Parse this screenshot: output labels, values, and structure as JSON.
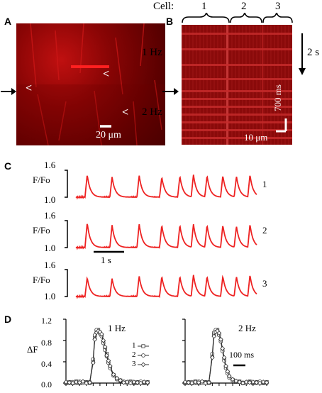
{
  "panels": {
    "a": {
      "label": "A",
      "scalebar_text": "20 μm",
      "marker": "<"
    },
    "b": {
      "label": "B",
      "cell_header": "Cell:",
      "cells": [
        "1",
        "2",
        "3"
      ],
      "rate_top": "1 Hz",
      "rate_bottom": "2 Hz",
      "time_scale": "2 s",
      "ms_scale": "700 ms",
      "um_scale": "10 μm"
    },
    "c": {
      "label": "C",
      "ylabel": "F/Fo",
      "ytick_top": "1.6",
      "ytick_bottom": "1.0",
      "trace_numbers": [
        "1",
        "2",
        "3"
      ],
      "time_scale": "1 s"
    },
    "d": {
      "label": "D",
      "ylabel": "ΔF",
      "yticks": [
        "0.0",
        "0.4",
        "0.8",
        "1.2"
      ],
      "left_title": "1 Hz",
      "right_title": "2 Hz",
      "legend": [
        "1",
        "2",
        "3"
      ],
      "time_scale": "100 ms"
    }
  },
  "colors": {
    "trace": "#ee2222",
    "image_bg": "#7a0000"
  },
  "chart_data": [
    {
      "type": "line",
      "title": "",
      "ylabel": "F/Fo",
      "ylim": [
        1.0,
        1.6
      ],
      "series": [
        {
          "name": "1",
          "peak_times_s": [
            0.25,
            0.8,
            1.4,
            1.9,
            2.3,
            2.6,
            2.9,
            3.25,
            3.55,
            3.85
          ],
          "peaks": [
            1.5,
            1.45,
            1.48,
            1.45,
            1.47,
            1.5,
            1.48,
            1.48,
            1.47,
            1.5
          ]
        },
        {
          "name": "2",
          "peak_times_s": [
            0.25,
            0.8,
            1.4,
            1.9,
            2.3,
            2.6,
            2.9,
            3.25,
            3.55,
            3.85
          ],
          "peaks": [
            1.55,
            1.5,
            1.52,
            1.5,
            1.5,
            1.52,
            1.5,
            1.5,
            1.48,
            1.52
          ]
        },
        {
          "name": "3",
          "peak_times_s": [
            0.25,
            0.8,
            1.4,
            1.9,
            2.3,
            2.6,
            2.9,
            3.25,
            3.55,
            3.85
          ],
          "peaks": [
            1.42,
            1.4,
            1.45,
            1.45,
            1.45,
            1.48,
            1.45,
            1.45,
            1.45,
            1.48
          ]
        }
      ]
    },
    {
      "type": "line",
      "title": "1 Hz",
      "ylabel": "ΔF",
      "ylim": [
        0.0,
        1.2
      ],
      "series": [
        {
          "name": "1",
          "x_ms": [
            0,
            20,
            40,
            60,
            80,
            100,
            120,
            140,
            160,
            170,
            180,
            190,
            200,
            210,
            220,
            230,
            240,
            250,
            260,
            280,
            300,
            320,
            340,
            360,
            380,
            400,
            420,
            440,
            460,
            480
          ],
          "values": [
            0.0,
            0.02,
            0.0,
            0.03,
            0.0,
            0.01,
            0.02,
            0.0,
            0.4,
            0.85,
            0.98,
            1.0,
            0.95,
            0.9,
            0.78,
            0.65,
            0.55,
            0.4,
            0.3,
            0.15,
            0.08,
            0.05,
            0.02,
            0.01,
            0.03,
            0.0,
            0.02,
            0.01,
            0.0,
            0.02
          ]
        },
        {
          "name": "2",
          "x_ms": [
            0,
            20,
            40,
            60,
            80,
            100,
            120,
            140,
            160,
            170,
            180,
            190,
            200,
            210,
            220,
            230,
            240,
            250,
            260,
            280,
            300,
            320,
            340,
            360,
            380,
            400,
            420,
            440,
            460,
            480
          ],
          "values": [
            0.01,
            0.0,
            0.02,
            0.0,
            0.03,
            0.0,
            0.01,
            0.02,
            0.45,
            0.9,
            1.0,
            0.97,
            0.93,
            0.88,
            0.75,
            0.62,
            0.5,
            0.38,
            0.28,
            0.14,
            0.07,
            0.04,
            0.03,
            0.0,
            0.02,
            0.01,
            0.0,
            0.03,
            0.01,
            0.0
          ]
        },
        {
          "name": "3",
          "x_ms": [
            0,
            20,
            40,
            60,
            80,
            100,
            120,
            140,
            160,
            170,
            180,
            190,
            200,
            210,
            220,
            230,
            240,
            250,
            260,
            280,
            300,
            320,
            340,
            360,
            380,
            400,
            420,
            440,
            460,
            480
          ],
          "values": [
            0.02,
            0.01,
            0.0,
            0.02,
            0.01,
            0.03,
            0.0,
            0.01,
            0.38,
            0.82,
            0.95,
            0.98,
            0.96,
            0.92,
            0.8,
            0.68,
            0.52,
            0.42,
            0.32,
            0.16,
            0.09,
            0.05,
            0.01,
            0.02,
            0.0,
            0.02,
            0.01,
            0.0,
            0.02,
            0.01
          ]
        }
      ]
    },
    {
      "type": "line",
      "title": "2 Hz",
      "ylabel": "ΔF",
      "ylim": [
        0.0,
        1.2
      ],
      "series": [
        {
          "name": "1",
          "x_ms": [
            0,
            20,
            40,
            60,
            80,
            100,
            120,
            140,
            160,
            170,
            180,
            190,
            200,
            210,
            220,
            230,
            240,
            250,
            260,
            280,
            300,
            320,
            340,
            360,
            380,
            400,
            420,
            440,
            460,
            480
          ],
          "values": [
            0.0,
            0.02,
            0.0,
            0.03,
            0.0,
            0.01,
            0.02,
            0.0,
            0.5,
            0.9,
            0.98,
            1.0,
            0.92,
            0.8,
            0.62,
            0.45,
            0.3,
            0.2,
            0.12,
            0.06,
            0.02,
            0.03,
            0.0,
            0.01,
            0.03,
            0.0,
            0.02,
            0.01,
            0.0,
            0.02
          ]
        },
        {
          "name": "2",
          "x_ms": [
            0,
            20,
            40,
            60,
            80,
            100,
            120,
            140,
            160,
            170,
            180,
            190,
            200,
            210,
            220,
            230,
            240,
            250,
            260,
            280,
            300,
            320,
            340,
            360,
            380,
            400,
            420,
            440,
            460,
            480
          ],
          "values": [
            0.01,
            0.0,
            0.02,
            0.0,
            0.03,
            0.0,
            0.01,
            0.02,
            0.55,
            0.95,
            1.0,
            0.97,
            0.9,
            0.78,
            0.6,
            0.42,
            0.28,
            0.18,
            0.1,
            0.05,
            0.03,
            0.02,
            0.01,
            0.0,
            0.02,
            0.01,
            0.0,
            0.03,
            0.01,
            0.0
          ]
        },
        {
          "name": "3",
          "x_ms": [
            0,
            20,
            40,
            60,
            80,
            100,
            120,
            140,
            160,
            170,
            180,
            190,
            200,
            210,
            220,
            230,
            240,
            250,
            260,
            280,
            300,
            320,
            340,
            360,
            380,
            400,
            420,
            440,
            460,
            480
          ],
          "values": [
            0.02,
            0.01,
            0.0,
            0.02,
            0.01,
            0.03,
            0.0,
            0.01,
            0.48,
            0.88,
            0.96,
            0.98,
            0.94,
            0.82,
            0.65,
            0.48,
            0.32,
            0.22,
            0.13,
            0.07,
            0.04,
            0.02,
            0.0,
            0.02,
            0.01,
            0.02,
            0.01,
            0.0,
            0.02,
            0.01
          ]
        }
      ]
    }
  ]
}
